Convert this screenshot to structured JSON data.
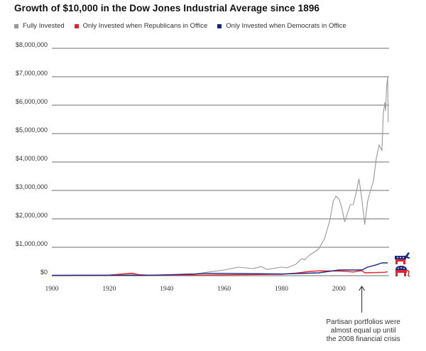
{
  "chart_data": {
    "type": "line",
    "title": "Growth of $10,000 in the Dow Jones Industrial Average since 1896",
    "xlabel": "",
    "ylabel": "",
    "xlim": [
      1900,
      2017
    ],
    "ylim": [
      0,
      8000000
    ],
    "grid": true,
    "legend_position": "top-left",
    "x_ticks": [
      1900,
      1920,
      1940,
      1960,
      1980,
      2000
    ],
    "x_tick_labels": [
      "1900",
      "1920",
      "1940",
      "1960",
      "1980",
      "2000"
    ],
    "y_ticks": [
      0,
      1000000,
      2000000,
      3000000,
      4000000,
      5000000,
      6000000,
      7000000,
      8000000
    ],
    "y_tick_labels": [
      "$0",
      "$1,000,000",
      "$2,000,000",
      "$3,000,000",
      "$4,000,000",
      "$5,000,000",
      "$6,000,000",
      "$7,000,000",
      "$8,000,000"
    ],
    "series": [
      {
        "name": "Fully Invested",
        "color": "#999999",
        "points": [
          [
            1900,
            10000
          ],
          [
            1920,
            20000
          ],
          [
            1928,
            60000
          ],
          [
            1932,
            15000
          ],
          [
            1940,
            30000
          ],
          [
            1950,
            60000
          ],
          [
            1954,
            120000
          ],
          [
            1960,
            200000
          ],
          [
            1965,
            300000
          ],
          [
            1970,
            250000
          ],
          [
            1973,
            320000
          ],
          [
            1975,
            220000
          ],
          [
            1980,
            300000
          ],
          [
            1982,
            280000
          ],
          [
            1985,
            400000
          ],
          [
            1987,
            600000
          ],
          [
            1988,
            550000
          ],
          [
            1990,
            750000
          ],
          [
            1991,
            800000
          ],
          [
            1993,
            950000
          ],
          [
            1995,
            1300000
          ],
          [
            1997,
            2000000
          ],
          [
            1998,
            2600000
          ],
          [
            1999,
            2800000
          ],
          [
            2000,
            2700000
          ],
          [
            2001,
            2400000
          ],
          [
            2002,
            1900000
          ],
          [
            2003,
            2200000
          ],
          [
            2004,
            2500000
          ],
          [
            2005,
            2500000
          ],
          [
            2006,
            2900000
          ],
          [
            2007,
            3400000
          ],
          [
            2008,
            2700000
          ],
          [
            2009,
            1800000
          ],
          [
            2010,
            2600000
          ],
          [
            2011,
            3000000
          ],
          [
            2012,
            3300000
          ],
          [
            2013,
            4100000
          ],
          [
            2014,
            4600000
          ],
          [
            2015,
            4400000
          ],
          [
            2015.5,
            5700000
          ],
          [
            2016,
            6100000
          ],
          [
            2016.3,
            5800000
          ],
          [
            2016.6,
            6600000
          ],
          [
            2017,
            7000000
          ],
          [
            2017.2,
            5400000
          ]
        ]
      },
      {
        "name": "Only Invested when Republicans in Office",
        "color": "#e8222a",
        "points": [
          [
            1900,
            10000
          ],
          [
            1920,
            20000
          ],
          [
            1928,
            90000
          ],
          [
            1930,
            40000
          ],
          [
            1933,
            20000
          ],
          [
            1953,
            20000
          ],
          [
            1960,
            30000
          ],
          [
            1970,
            40000
          ],
          [
            1977,
            50000
          ],
          [
            1980,
            50000
          ],
          [
            1985,
            90000
          ],
          [
            1990,
            150000
          ],
          [
            1993,
            170000
          ],
          [
            2001,
            160000
          ],
          [
            2005,
            130000
          ],
          [
            2008,
            180000
          ],
          [
            2009,
            100000
          ],
          [
            2016,
            120000
          ],
          [
            2017,
            140000
          ]
        ]
      },
      {
        "name": "Only Invested when Democrats in Office",
        "color": "#1a2a7e",
        "points": [
          [
            1900,
            10000
          ],
          [
            1913,
            15000
          ],
          [
            1920,
            15000
          ],
          [
            1933,
            15000
          ],
          [
            1940,
            30000
          ],
          [
            1950,
            60000
          ],
          [
            1953,
            80000
          ],
          [
            1960,
            80000
          ],
          [
            1970,
            70000
          ],
          [
            1981,
            60000
          ],
          [
            1993,
            100000
          ],
          [
            2000,
            200000
          ],
          [
            2008,
            200000
          ],
          [
            2010,
            300000
          ],
          [
            2013,
            380000
          ],
          [
            2015,
            450000
          ],
          [
            2017,
            450000
          ]
        ]
      }
    ],
    "annotations": [
      {
        "text": [
          "Partisan portfolios were",
          "almost equal up until",
          "the 2008 financial crisis"
        ],
        "x": 2008,
        "arrow": "up"
      }
    ],
    "icons": [
      "democrat-donkey-icon",
      "republican-elephant-icon"
    ]
  },
  "legend": [
    {
      "label": "Fully Invested",
      "color": "#999999"
    },
    {
      "label": "Only Invested when Republicans in Office",
      "color": "#e8222a"
    },
    {
      "label": "Only Invested when Democrats in Office",
      "color": "#1a2a7e"
    }
  ]
}
